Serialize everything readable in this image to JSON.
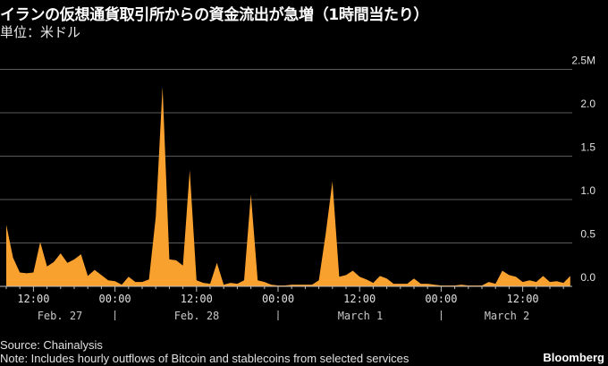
{
  "chart_data": {
    "type": "area",
    "title": "イランの仮想通貨取引所からの資金流出が急増（1時間当たり）",
    "subtitle": "単位：米ドル",
    "xlabel": "",
    "ylabel": "",
    "ylim": [
      0,
      2.5
    ],
    "y_ticks": [
      "0.0",
      "0.5",
      "1.0",
      "1.5",
      "2.0",
      "2.5M"
    ],
    "y_tick_values": [
      0,
      0.5,
      1.0,
      1.5,
      2.0,
      2.5
    ],
    "y_axis_side": "right",
    "grid": true,
    "legend": "none",
    "color": "#f9a12e",
    "x_time_ticks": [
      "12:00",
      "00:00",
      "12:00",
      "00:00",
      "12:00",
      "00:00",
      "12:00"
    ],
    "x_date_labels": [
      "Feb. 27",
      "Feb. 28",
      "March 1",
      "March 2"
    ],
    "x": [
      "Feb 27 08:00",
      "Feb 27 09:00",
      "Feb 27 10:00",
      "Feb 27 11:00",
      "Feb 27 12:00",
      "Feb 27 13:00",
      "Feb 27 14:00",
      "Feb 27 15:00",
      "Feb 27 16:00",
      "Feb 27 17:00",
      "Feb 27 18:00",
      "Feb 27 19:00",
      "Feb 27 20:00",
      "Feb 27 21:00",
      "Feb 27 22:00",
      "Feb 27 23:00",
      "Feb 28 00:00",
      "Feb 28 01:00",
      "Feb 28 02:00",
      "Feb 28 03:00",
      "Feb 28 04:00",
      "Feb 28 05:00",
      "Feb 28 06:00",
      "Feb 28 07:00",
      "Feb 28 08:00",
      "Feb 28 09:00",
      "Feb 28 10:00",
      "Feb 28 11:00",
      "Feb 28 12:00",
      "Feb 28 13:00",
      "Feb 28 14:00",
      "Feb 28 15:00",
      "Feb 28 16:00",
      "Feb 28 17:00",
      "Feb 28 18:00",
      "Feb 28 19:00",
      "Feb 28 20:00",
      "Feb 28 21:00",
      "Feb 28 22:00",
      "Feb 28 23:00",
      "Mar 1 00:00",
      "Mar 1 01:00",
      "Mar 1 02:00",
      "Mar 1 03:00",
      "Mar 1 04:00",
      "Mar 1 05:00",
      "Mar 1 06:00",
      "Mar 1 07:00",
      "Mar 1 08:00",
      "Mar 1 09:00",
      "Mar 1 10:00",
      "Mar 1 11:00",
      "Mar 1 12:00",
      "Mar 1 13:00",
      "Mar 1 14:00",
      "Mar 1 15:00",
      "Mar 1 16:00",
      "Mar 1 17:00",
      "Mar 1 18:00",
      "Mar 1 19:00",
      "Mar 1 20:00",
      "Mar 1 21:00",
      "Mar 1 22:00",
      "Mar 1 23:00",
      "Mar 2 00:00",
      "Mar 2 01:00",
      "Mar 2 02:00",
      "Mar 2 03:00",
      "Mar 2 04:00",
      "Mar 2 05:00",
      "Mar 2 06:00",
      "Mar 2 07:00",
      "Mar 2 08:00",
      "Mar 2 09:00",
      "Mar 2 10:00",
      "Mar 2 11:00",
      "Mar 2 12:00",
      "Mar 2 13:00",
      "Mar 2 14:00",
      "Mar 2 15:00",
      "Mar 2 16:00",
      "Mar 2 17:00",
      "Mar 2 18:00",
      "Mar 2 19:00"
    ],
    "values": [
      0.71,
      0.33,
      0.16,
      0.15,
      0.16,
      0.51,
      0.23,
      0.28,
      0.38,
      0.27,
      0.31,
      0.37,
      0.12,
      0.19,
      0.13,
      0.07,
      0.06,
      0.02,
      0.11,
      0.05,
      0.05,
      0.08,
      0.8,
      2.3,
      0.31,
      0.3,
      0.24,
      1.34,
      0.07,
      0.04,
      0.03,
      0.27,
      0.02,
      0.04,
      0.03,
      0.07,
      1.06,
      0.07,
      0.05,
      0.02,
      0.01,
      0.01,
      0.02,
      0.02,
      0.02,
      0.02,
      0.07,
      0.6,
      1.21,
      0.11,
      0.13,
      0.18,
      0.11,
      0.08,
      0.04,
      0.12,
      0.09,
      0.03,
      0.03,
      0.03,
      0.09,
      0.03,
      0.03,
      0.02,
      0.01,
      0.01,
      0.01,
      0.02,
      0.01,
      0.01,
      0.01,
      0.05,
      0.03,
      0.18,
      0.13,
      0.11,
      0.05,
      0.07,
      0.05,
      0.12,
      0.05,
      0.06,
      0.04,
      0.12
    ]
  },
  "footer": {
    "source": "Source: Chainalysis",
    "note": "Note: Includes hourly outflows of Bitcoin and stablecoins from selected services",
    "brand": "Bloomberg"
  }
}
